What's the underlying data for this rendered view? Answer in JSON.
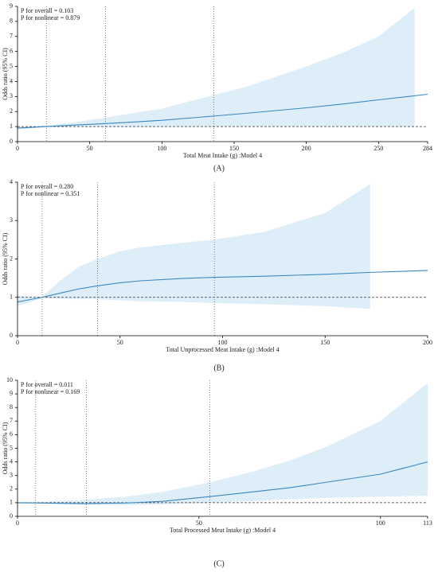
{
  "chart_data": [
    {
      "type": "line",
      "panel_label": "(A)",
      "x_label": "Total Meat Intake (g) :Model 4",
      "y_label": "Odds ratio (95% CI)",
      "annotations": [
        "P for overall = 0.103",
        "P for nonlinear = 0.879"
      ],
      "xlim": [
        0,
        284
      ],
      "xticks": [
        0,
        50,
        100,
        150,
        200,
        250,
        284
      ],
      "ylim": [
        0,
        9
      ],
      "yticks": [
        0,
        1,
        2,
        3,
        4,
        5,
        6,
        7,
        8,
        9
      ],
      "reference_y": 1,
      "reference_x": [
        20,
        61,
        136
      ],
      "line": {
        "color": "#3a87c0",
        "x": [
          0,
          10,
          20,
          40,
          61,
          80,
          100,
          136,
          160,
          200,
          225,
          250,
          284
        ],
        "values": [
          0.9,
          0.95,
          1.0,
          1.1,
          1.2,
          1.3,
          1.42,
          1.7,
          1.9,
          2.25,
          2.5,
          2.78,
          3.15
        ]
      },
      "band": {
        "color": "#deeef8",
        "x": [
          0,
          10,
          20,
          40,
          61,
          80,
          100,
          136,
          160,
          200,
          225,
          250,
          275
        ],
        "upper": [
          1.0,
          1.0,
          1.05,
          1.3,
          1.6,
          1.9,
          2.2,
          3.1,
          3.7,
          5.0,
          5.9,
          7.0,
          8.9
        ],
        "lower": [
          0.82,
          0.9,
          0.98,
          0.98,
          0.97,
          0.97,
          0.98,
          1.0,
          1.0,
          1.0,
          1.0,
          1.0,
          1.0
        ]
      }
    },
    {
      "type": "line",
      "panel_label": "(B)",
      "x_label": "Total Unprocessed Meat Intake (g) :Model 4",
      "y_label": "Odds ratio (95% CI)",
      "annotations": [
        "P for overall = 0.280",
        "P for nonlinear = 0.351"
      ],
      "xlim": [
        0,
        200
      ],
      "xticks": [
        0,
        50,
        100,
        150,
        200
      ],
      "ylim": [
        0,
        4
      ],
      "yticks": [
        0,
        1,
        2,
        3,
        4
      ],
      "reference_y": 1,
      "reference_x": [
        12,
        39,
        96
      ],
      "line": {
        "color": "#3a87c0",
        "x": [
          0,
          5,
          12,
          20,
          30,
          39,
          50,
          60,
          80,
          95,
          120,
          150,
          172,
          200
        ],
        "values": [
          0.88,
          0.93,
          1.0,
          1.1,
          1.22,
          1.3,
          1.38,
          1.43,
          1.49,
          1.52,
          1.55,
          1.6,
          1.65,
          1.7
        ]
      },
      "band": {
        "color": "#deeef8",
        "x": [
          0,
          5,
          12,
          20,
          30,
          39,
          50,
          60,
          80,
          95,
          120,
          150,
          172
        ],
        "upper": [
          1.05,
          1.02,
          1.02,
          1.4,
          1.8,
          2.0,
          2.2,
          2.3,
          2.42,
          2.5,
          2.7,
          3.2,
          3.95
        ],
        "lower": [
          0.78,
          0.85,
          0.98,
          0.96,
          0.95,
          0.95,
          0.92,
          0.9,
          0.88,
          0.85,
          0.82,
          0.77,
          0.7
        ]
      }
    },
    {
      "type": "line",
      "panel_label": "(C)",
      "x_label": "Total Processed Meat Intake (g) :Model 4",
      "y_label": "Odds ratio (95% CI)",
      "annotations": [
        "P for overall = 0.011",
        "P for nonlinear = 0.169"
      ],
      "xlim": [
        0,
        113
      ],
      "xticks": [
        0,
        50,
        100,
        113
      ],
      "ylim": [
        0,
        10
      ],
      "yticks": [
        0,
        1,
        2,
        3,
        4,
        5,
        6,
        7,
        8,
        9,
        10
      ],
      "reference_y": 1,
      "reference_x": [
        5,
        19,
        53
      ],
      "line": {
        "color": "#3a87c0",
        "x": [
          0,
          5,
          18,
          30,
          40,
          53,
          65,
          75,
          85,
          100,
          113
        ],
        "values": [
          1.0,
          0.98,
          0.93,
          0.98,
          1.1,
          1.45,
          1.8,
          2.1,
          2.5,
          3.1,
          4.0
        ]
      },
      "band": {
        "color": "#deeef8",
        "x": [
          0,
          5,
          18,
          30,
          40,
          53,
          65,
          75,
          85,
          100,
          113
        ],
        "upper": [
          1.05,
          1.05,
          1.2,
          1.45,
          1.8,
          2.5,
          3.3,
          4.1,
          5.1,
          7.0,
          9.8
        ],
        "lower": [
          0.95,
          0.95,
          0.85,
          0.82,
          0.88,
          1.0,
          1.12,
          1.25,
          1.35,
          1.45,
          1.52
        ]
      }
    }
  ]
}
